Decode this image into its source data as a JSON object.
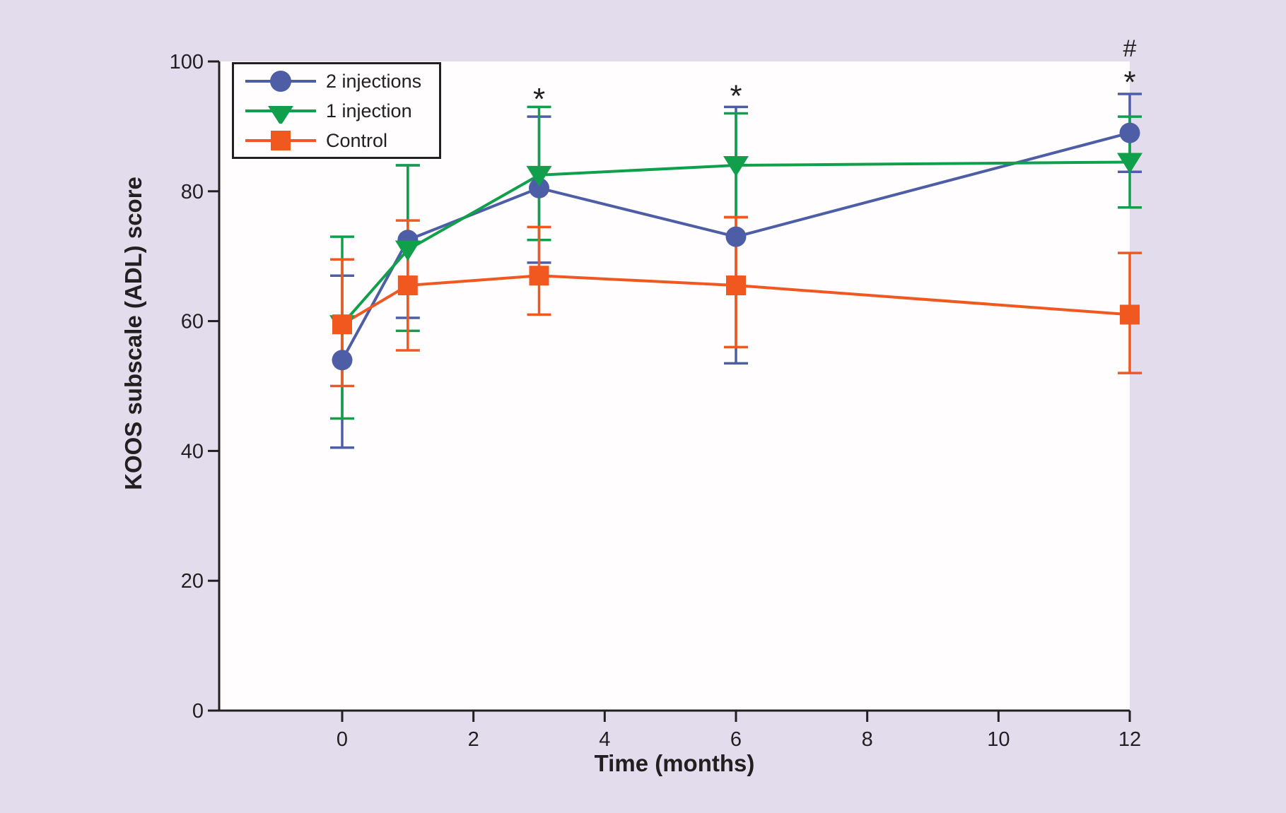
{
  "figure": {
    "background_color": "#e2dcec",
    "plot_background_color": "#fffdfe",
    "axis_color": "#231f20"
  },
  "chart_data": {
    "type": "line",
    "title": "",
    "xlabel": "Time (months)",
    "ylabel": "KOOS subscale (ADL) score",
    "x_ticks": [
      0,
      2,
      4,
      6,
      8,
      10,
      12
    ],
    "y_ticks": [
      0,
      20,
      40,
      60,
      80,
      100
    ],
    "xlim": [
      -1.9,
      12.05
    ],
    "ylim": [
      0,
      100
    ],
    "grid": false,
    "legend_position": "top-left",
    "x": [
      0,
      1,
      3,
      6,
      12
    ],
    "series": [
      {
        "name": "2 injections",
        "marker": "circle",
        "color": "#4d5ea6",
        "values": [
          54,
          72.5,
          80.5,
          73,
          89
        ],
        "error_low": [
          40.5,
          60.5,
          69,
          53.5,
          83
        ],
        "error_high": [
          67,
          84,
          91.5,
          93,
          95
        ]
      },
      {
        "name": "1 injection",
        "marker": "triangle-down",
        "color": "#10a04c",
        "values": [
          59.5,
          71,
          82.5,
          84,
          84.5
        ],
        "error_low": [
          45,
          58.5,
          72.5,
          76,
          77.5
        ],
        "error_high": [
          73,
          84,
          93,
          92,
          91.5
        ]
      },
      {
        "name": "Control",
        "marker": "square",
        "color": "#f1581f",
        "values": [
          59.5,
          65.5,
          67,
          65.5,
          61
        ],
        "error_low": [
          50,
          55.5,
          61,
          56,
          52
        ],
        "error_high": [
          69.5,
          75.5,
          74.5,
          76,
          70.5
        ]
      }
    ],
    "annotations": [
      {
        "text": "*",
        "month": 3,
        "y": 95.1
      },
      {
        "text": "*",
        "month": 6,
        "y": 95.6
      },
      {
        "text": "*",
        "month": 12,
        "y": 97.7
      },
      {
        "text": "#",
        "month": 12,
        "y": 102.3
      }
    ]
  }
}
